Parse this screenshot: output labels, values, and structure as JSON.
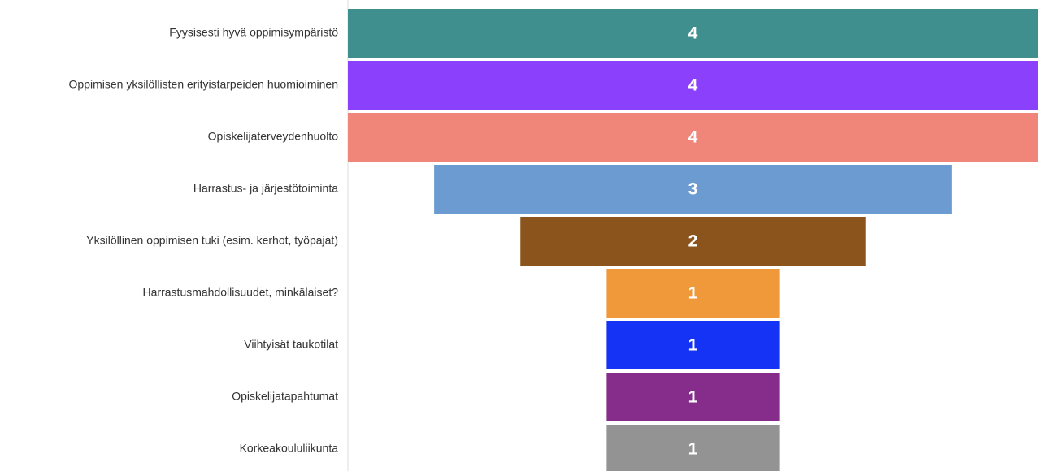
{
  "chart_data": {
    "type": "funnel",
    "categories": [
      "Fyysisesti hyvä oppimisympäristö",
      "Oppimisen yksilöllisten erityistarpeiden huomioiminen",
      "Opiskelijaterveydenhuolto",
      "Harrastus- ja järjestötoiminta",
      "Yksilöllinen oppimisen tuki (esim. kerhot, työpajat)",
      "Harrastusmahdollisuudet, minkälaiset?",
      "Viihtyisät taukotilat",
      "Opiskelijatapahtumat",
      "Korkeakoululiikunta"
    ],
    "values": [
      4,
      4,
      4,
      3,
      2,
      1,
      1,
      1,
      1
    ],
    "colors": [
      "#3f8f8f",
      "#8b40fb",
      "#f0857a",
      "#6b9bd1",
      "#8b541d",
      "#f0993a",
      "#1533f5",
      "#862d8c",
      "#939393"
    ]
  }
}
